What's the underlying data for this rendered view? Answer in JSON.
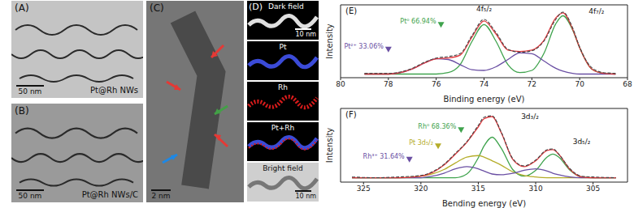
{
  "image_panels": [
    {
      "label": "(A)",
      "texts": [
        "Pt@Rh NWs"
      ],
      "scale_bar": "50 nm"
    },
    {
      "label": "(B)",
      "texts": [
        "Pt@Rh NWs/C"
      ],
      "scale_bar": "50 nm"
    },
    {
      "label": "(C)",
      "scale_bar": "2 nm"
    },
    {
      "label": "(D)",
      "tiles": [
        {
          "text": "Dark field",
          "scale_bar": "10 nm"
        },
        {
          "text": "Pt"
        },
        {
          "text": "Rh"
        },
        {
          "text": "Pt+Rh"
        },
        {
          "text": "Bright field",
          "scale_bar": "10 nm"
        }
      ]
    }
  ],
  "chart_data": [
    {
      "type": "line",
      "title": "(E)",
      "xlabel": "Binding energy (eV)",
      "ylabel": "Intensity",
      "xlim": [
        80,
        68
      ],
      "xticks": [
        80,
        78,
        76,
        74,
        72,
        70,
        68
      ],
      "ylim": [
        0,
        100
      ],
      "tick_labels": "x",
      "grid": false,
      "x": [
        79,
        78,
        77,
        76.5,
        76,
        75.5,
        75,
        74.5,
        74,
        73.5,
        73,
        72.5,
        72,
        71.5,
        71,
        70.7,
        70.3,
        70,
        69.5,
        69,
        68.5
      ],
      "series": [
        {
          "color": "#3fa34d",
          "values": [
            5,
            5,
            5,
            5,
            5,
            7,
            18,
            50,
            73,
            50,
            18,
            7,
            10,
            33,
            74,
            85,
            66,
            41,
            12,
            6,
            5
          ]
        },
        {
          "color": "#6a4fa3",
          "values": [
            5,
            5,
            12,
            20,
            26,
            25,
            18,
            11,
            10,
            15,
            25,
            34,
            33,
            23,
            13,
            9,
            6,
            5,
            5,
            5,
            5
          ]
        },
        {
          "color": "#e0393e",
          "values": [
            5,
            5,
            12,
            20,
            26,
            27,
            31,
            56,
            78,
            60,
            38,
            36,
            38,
            51,
            82,
            89,
            67,
            41,
            12,
            6,
            5
          ]
        },
        {
          "color": "#444444",
          "line_style": "dashed",
          "values": [
            6,
            6,
            13,
            21,
            27,
            29,
            33,
            58,
            80,
            62,
            39,
            35,
            37,
            50,
            80,
            90,
            69,
            42,
            14,
            7,
            6
          ]
        }
      ],
      "annotations": [
        {
          "text": "4f₅/₂",
          "x": 74,
          "y": 91
        },
        {
          "text": "4f₇/₂",
          "x": 69.3,
          "y": 88
        },
        {
          "text": "Pt⁰ 66.94%",
          "x": 75.8,
          "y": 72,
          "color": "#3fa34d"
        },
        {
          "text": "Pt²⁺ 33.06%",
          "x": 78,
          "y": 38,
          "color": "#6a4fa3"
        }
      ]
    },
    {
      "type": "line",
      "title": "(F)",
      "xlabel": "Bending energy (eV)",
      "ylabel": "Intensity",
      "xlim": [
        327,
        302
      ],
      "xticks": [
        325,
        320,
        315,
        310,
        305
      ],
      "ylim": [
        0,
        100
      ],
      "tick_labels": "x",
      "grid": false,
      "x": [
        326,
        324,
        322,
        320,
        319,
        318,
        317,
        316,
        315,
        314.5,
        313.8,
        313,
        312,
        311,
        310,
        309,
        308.5,
        308,
        307,
        306,
        305,
        303
      ],
      "series": [
        {
          "color": "#3fa34d",
          "values": [
            6,
            6,
            6,
            6,
            6,
            6,
            6,
            11,
            33,
            49,
            61,
            46,
            17,
            8,
            16,
            34,
            38,
            34,
            16,
            7,
            6,
            6
          ]
        },
        {
          "color": "#b5ad2a",
          "values": [
            6,
            6,
            6,
            8,
            11,
            17,
            26,
            34,
            36,
            34,
            29,
            23,
            14,
            9,
            7,
            6,
            6,
            6,
            6,
            6,
            6,
            6
          ]
        },
        {
          "color": "#6a4fa3",
          "values": [
            6,
            6,
            6,
            6,
            8,
            12,
            18,
            21,
            18,
            15,
            11,
            10,
            12,
            16,
            18,
            15,
            12,
            10,
            7,
            6,
            6,
            6
          ]
        },
        {
          "color": "#e0393e",
          "values": [
            6,
            6,
            6,
            8,
            13,
            23,
            38,
            54,
            75,
            86,
            89,
            67,
            31,
            21,
            29,
            43,
            44,
            38,
            17,
            7,
            6,
            6
          ]
        },
        {
          "color": "#444444",
          "line_style": "dashed",
          "values": [
            7,
            6,
            7,
            9,
            14,
            24,
            39,
            55,
            77,
            88,
            90,
            68,
            32,
            22,
            30,
            44,
            45,
            38,
            18,
            8,
            7,
            6
          ]
        }
      ],
      "annotations": [
        {
          "text": "3d₃/₂",
          "x": 310.5,
          "y": 86
        },
        {
          "text": "3d₅/₂",
          "x": 306,
          "y": 52
        },
        {
          "text": "Rh⁰ 68.36%",
          "x": 316.5,
          "y": 70,
          "color": "#3fa34d"
        },
        {
          "text": "Pt 3d₅/₂",
          "x": 318.5,
          "y": 48,
          "color": "#b5ad2a"
        },
        {
          "text": "Rh³⁺ 31.64%",
          "x": 321,
          "y": 30,
          "color": "#6a4fa3"
        }
      ]
    }
  ]
}
